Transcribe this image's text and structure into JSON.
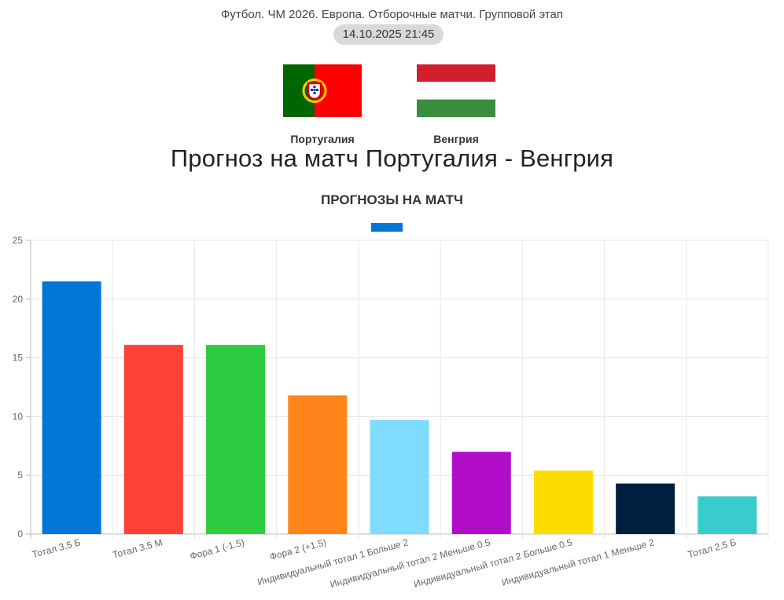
{
  "header": {
    "competition": "Футбол. ЧМ 2026. Европа. Отборочные матчи. Групповой этап",
    "datetime": "14.10.2025 21:45"
  },
  "teams": {
    "home": {
      "name": "Португалия",
      "flag": "portugal-flag"
    },
    "away": {
      "name": "Венгрия",
      "flag": "hungary-flag"
    }
  },
  "page_title": "Прогноз на матч Португалия - Венгрия",
  "section": {
    "title": "ПРОГНОЗЫ НА МАТЧ",
    "accent_color": "#0275d8"
  },
  "chart_data": {
    "type": "bar",
    "categories": [
      "Тотал 3.5 Б",
      "Тотал 3.5 М",
      "Фора 1 (-1.5)",
      "Фора 2 (+1.5)",
      "Индивидуальный тотал 1 Больше 2",
      "Индивидуальный тотал 2 Меньше 0.5",
      "Индивидуальный тотал 2 Больше 0.5",
      "Индивидуальный тотал 1 Меньше 2",
      "Тотал 2.5 Б"
    ],
    "values": [
      21.5,
      16.1,
      16.1,
      11.8,
      9.7,
      7.0,
      5.4,
      4.3,
      3.2
    ],
    "colors": [
      "#0275d8",
      "#ff4136",
      "#2ecc40",
      "#ff851b",
      "#7fdbff",
      "#b10dc9",
      "#ffdc00",
      "#001f3f",
      "#39cccc"
    ],
    "ylim": [
      0,
      25
    ],
    "yticks": [
      0,
      5,
      10,
      15,
      20,
      25
    ],
    "grid": true,
    "title": "",
    "xlabel": "",
    "ylabel": ""
  }
}
